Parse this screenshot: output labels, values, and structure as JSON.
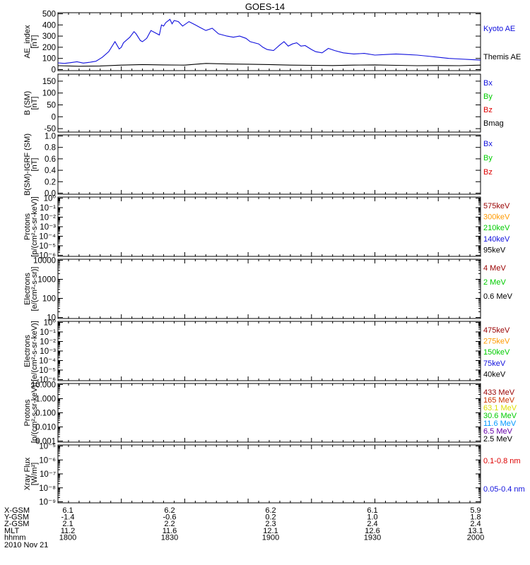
{
  "colors": {
    "blue": "#1010dd",
    "green": "#00cc00",
    "red": "#dd0000",
    "black": "#000000",
    "orange": "#ff9900",
    "darkred": "#990000",
    "rust": "#cc3300",
    "yellow": "#dddd00",
    "skyblue": "#0099ff",
    "purple": "#6600aa"
  },
  "chart_data": {
    "title": "GOES-14",
    "type": "line",
    "x_range": [
      1800,
      2000
    ],
    "panels": [
      {
        "id": "ae",
        "ylabel": [
          "AE_index",
          "[nT]"
        ],
        "scale": "linear",
        "yrange": [
          0,
          500
        ],
        "ticks": [
          "0",
          "100",
          "200",
          "300",
          "400",
          "500"
        ],
        "tick_values": [
          0,
          100,
          200,
          300,
          400,
          500
        ],
        "legend": [
          {
            "text": "Kyoto AE",
            "color": "#1010dd"
          },
          {
            "text": "Themis AE",
            "color": "#000000"
          }
        ],
        "series": [
          {
            "name": "Kyoto AE",
            "color": "#1010dd",
            "x": [
              1800,
              1803,
              1806,
              1809,
              1812,
              1815,
              1818,
              1821,
              1824,
              1827,
              1829,
              1830,
              1831,
              1834,
              1836,
              1837,
              1839,
              1840,
              1842,
              1844,
              1846,
              1848,
              1849,
              1850,
              1851,
              1853,
              1854,
              1855,
              1857,
              1859,
              1862,
              1865,
              1867,
              1870,
              1873,
              1876,
              1880,
              1883,
              1886,
              1889,
              1891,
              1893,
              1895,
              1897,
              1899,
              1902,
              1905,
              1907,
              1909,
              1911,
              1913,
              1915,
              1917,
              1920,
              1922,
              1925,
              1928,
              1931,
              1935,
              1940,
              1945,
              1950,
              1955,
              1960,
              1965,
              1970,
              1975,
              1980,
              1985,
              1990,
              1995,
              2000
            ],
            "y": [
              60,
              55,
              62,
              70,
              58,
              65,
              75,
              110,
              160,
              250,
              185,
              200,
              240,
              290,
              340,
              320,
              260,
              250,
              280,
              350,
              330,
              310,
              400,
              390,
              420,
              450,
              410,
              440,
              430,
              390,
              430,
              400,
              380,
              350,
              370,
              320,
              300,
              290,
              300,
              280,
              250,
              240,
              230,
              200,
              180,
              170,
              220,
              250,
              210,
              230,
              240,
              210,
              215,
              180,
              160,
              150,
              190,
              170,
              150,
              140,
              145,
              130,
              135,
              140,
              135,
              130,
              120,
              110,
              100,
              95,
              90,
              85
            ]
          },
          {
            "name": "Themis AE",
            "color": "#000000",
            "x": [
              1800,
              1810,
              1820,
              1830,
              1840,
              1850,
              1860,
              1870,
              1880,
              1890,
              1900,
              1910,
              1920,
              1930,
              1940,
              1950,
              1960,
              1970,
              1980,
              1990,
              2000
            ],
            "y": [
              35,
              30,
              32,
              40,
              45,
              42,
              40,
              55,
              50,
              48,
              45,
              40,
              38,
              36,
              40,
              42,
              38,
              35,
              36,
              35,
              40
            ]
          }
        ]
      },
      {
        "id": "b",
        "ylabel": [
          "B (SM)",
          "[nT]"
        ],
        "scale": "linear",
        "yrange": [
          -60,
          175
        ],
        "ticks": [
          "-50",
          "0",
          "50",
          "100",
          "150"
        ],
        "tick_values": [
          -50,
          0,
          50,
          100,
          150
        ],
        "legend": [
          {
            "text": "Bx",
            "color": "#1010dd"
          },
          {
            "text": "By",
            "color": "#00cc00"
          },
          {
            "text": "Bz",
            "color": "#dd0000"
          },
          {
            "text": "Bmag",
            "color": "#000000"
          }
        ]
      },
      {
        "id": "bdiff",
        "ylabel": [
          "B(SM)-IGRF (SM)",
          "[nT]"
        ],
        "scale": "linear",
        "yrange": [
          0,
          1
        ],
        "ticks": [
          "0.0",
          "0.2",
          "0.4",
          "0.6",
          "0.8",
          "1.0"
        ],
        "tick_values": [
          0,
          0.2,
          0.4,
          0.6,
          0.8,
          1.0
        ],
        "legend": [
          {
            "text": "Bx",
            "color": "#1010dd"
          },
          {
            "text": "By",
            "color": "#00cc00"
          },
          {
            "text": "Bz",
            "color": "#dd0000"
          }
        ]
      },
      {
        "id": "protons1",
        "ylabel": [
          "Protons",
          "[p/(cm²-s-sr-keV)]"
        ],
        "scale": "log",
        "yrange": [
          -6,
          0
        ],
        "ticks": [
          "10⁻⁶",
          "10⁻⁵",
          "10⁻⁴",
          "10⁻³",
          "10⁻²",
          "10⁻¹",
          "10⁰"
        ],
        "tick_values": [
          -6,
          -5,
          -4,
          -3,
          -2,
          -1,
          0
        ],
        "legend": [
          {
            "text": "575keV",
            "color": "#990000"
          },
          {
            "text": "300keV",
            "color": "#ff9900"
          },
          {
            "text": "210keV",
            "color": "#00cc00"
          },
          {
            "text": "140keV",
            "color": "#1010dd"
          },
          {
            "text": "95keV",
            "color": "#000000"
          }
        ]
      },
      {
        "id": "electrons1",
        "ylabel": [
          "Electrons",
          "[e/(cm²-s-sr)]"
        ],
        "scale": "log",
        "yrange": [
          1,
          4
        ],
        "ticks": [
          "10",
          "100",
          "1000",
          "10000"
        ],
        "tick_values": [
          1,
          2,
          3,
          4
        ],
        "legend": [
          {
            "text": "4 MeV",
            "color": "#990000"
          },
          {
            "text": "2 MeV",
            "color": "#00cc00"
          },
          {
            "text": "0.6 MeV",
            "color": "#000000"
          }
        ]
      },
      {
        "id": "electrons2",
        "ylabel": [
          "Electrons",
          "[e/(cm²-s-sr-keV)]"
        ],
        "scale": "log",
        "yrange": [
          -6,
          0
        ],
        "ticks": [
          "10⁻⁶",
          "10⁻⁵",
          "10⁻⁴",
          "10⁻³",
          "10⁻²",
          "10⁻¹",
          "10⁰"
        ],
        "tick_values": [
          -6,
          -5,
          -4,
          -3,
          -2,
          -1,
          0
        ],
        "legend": [
          {
            "text": "475keV",
            "color": "#990000"
          },
          {
            "text": "275keV",
            "color": "#ff9900"
          },
          {
            "text": "150keV",
            "color": "#00cc00"
          },
          {
            "text": "75keV",
            "color": "#1010dd"
          },
          {
            "text": "40keV",
            "color": "#000000"
          }
        ]
      },
      {
        "id": "protons2",
        "ylabel": [
          "Protons",
          "[p/(cm²-s-sr-keV)]"
        ],
        "scale": "log",
        "yrange": [
          -3,
          1
        ],
        "ticks": [
          "0.001",
          "0.010",
          "0.100",
          "1.000",
          "10.000"
        ],
        "tick_values": [
          -3,
          -2,
          -1,
          0,
          1
        ],
        "legend": [
          {
            "text": "433 MeV",
            "color": "#990000"
          },
          {
            "text": "165 MeV",
            "color": "#cc3300"
          },
          {
            "text": "63.1 MeV",
            "color": "#dddd00"
          },
          {
            "text": "30.6 MeV",
            "color": "#00cc00"
          },
          {
            "text": "11.6 MeV",
            "color": "#0099ff"
          },
          {
            "text": "6.5 MeV",
            "color": "#6600aa"
          },
          {
            "text": "2.5 MeV",
            "color": "#000000"
          }
        ]
      },
      {
        "id": "xray",
        "ylabel": [
          "Xray Flux",
          "[W/m²]"
        ],
        "scale": "log",
        "yrange": [
          -9,
          -5
        ],
        "ticks": [
          "10⁻⁹",
          "10⁻⁸",
          "10⁻⁷",
          "10⁻⁶",
          "10⁻⁵"
        ],
        "tick_values": [
          -9,
          -8,
          -7,
          -6,
          -5
        ],
        "legend": [
          {
            "text": "0.1-0.8 nm",
            "color": "#dd0000"
          },
          {
            "text": "0.05-0.4 nm",
            "color": "#1010dd"
          }
        ]
      }
    ],
    "orbit_rows": [
      {
        "label": "X-GSM",
        "values": [
          "6.1",
          "6.2",
          "6.2",
          "6.1",
          "5.9"
        ]
      },
      {
        "label": "Y-GSM",
        "values": [
          "-1.4",
          "-0.6",
          "0.2",
          "1.0",
          "1.8"
        ]
      },
      {
        "label": "Z-GSM",
        "values": [
          "2.1",
          "2.2",
          "2.3",
          "2.4",
          "2.4"
        ]
      },
      {
        "label": "MLT",
        "values": [
          "11.2",
          "11.6",
          "12.1",
          "12.6",
          "13.1"
        ]
      },
      {
        "label": "hhmm",
        "values": [
          "1800",
          "1830",
          "1900",
          "1930",
          "2000"
        ]
      }
    ],
    "date": "2010 Nov 21"
  }
}
